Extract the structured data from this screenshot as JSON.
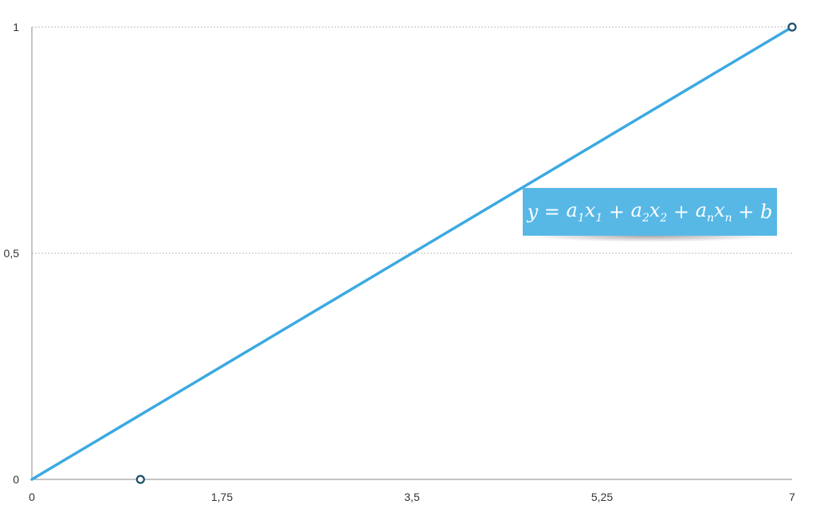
{
  "chart_data": {
    "type": "scatter",
    "title": "",
    "xlabel": "",
    "ylabel": "",
    "xlim": [
      0,
      7
    ],
    "ylim": [
      0,
      1
    ],
    "x_ticks": [
      "0",
      "1,75",
      "3,5",
      "5,25",
      "7"
    ],
    "x_tick_values": [
      0,
      1.75,
      3.5,
      5.25,
      7
    ],
    "y_ticks": [
      "0",
      "0,5",
      "1"
    ],
    "y_tick_values": [
      0,
      0.5,
      1
    ],
    "grid": "horizontal dotted",
    "series": [
      {
        "points": [
          {
            "x": 1,
            "y": 0
          },
          {
            "x": 7,
            "y": 1
          }
        ]
      }
    ],
    "fit_line": {
      "x": [
        0,
        7
      ],
      "y": [
        0,
        1
      ]
    },
    "annotation": "y = a1x1 + a2x2 + anxn + b",
    "colors": {
      "line": "#3ba9e2",
      "marker_stroke": "#1b4f6b",
      "annotation_bg": "#57b8e6",
      "grid": "#bbbbbb"
    }
  }
}
